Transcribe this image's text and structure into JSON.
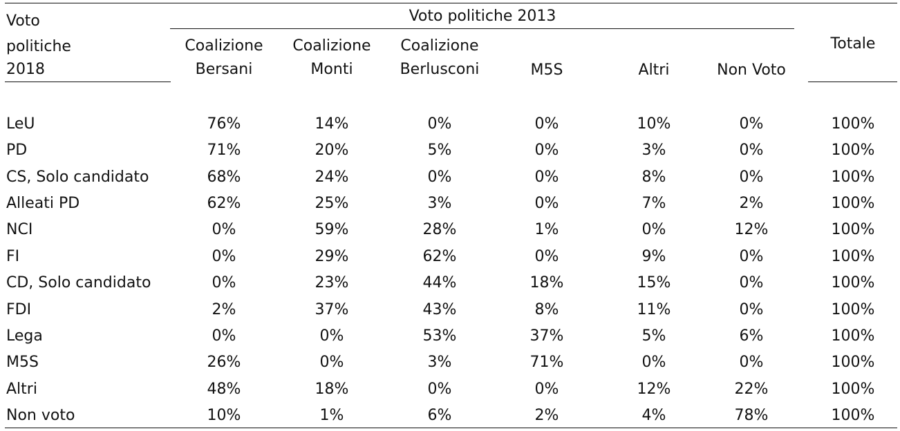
{
  "header": {
    "row_label": [
      "Voto",
      "politiche",
      "2018"
    ],
    "group_title": "Voto politiche 2013",
    "columns": [
      [
        "Coalizione",
        "Bersani"
      ],
      [
        "Coalizione",
        "Monti"
      ],
      [
        "Coalizione",
        "Berlusconi"
      ],
      [
        "",
        "M5S"
      ],
      [
        "",
        "Altri"
      ],
      [
        "",
        "Non Voto"
      ]
    ],
    "total": "Totale"
  },
  "rows": [
    {
      "label": "LeU",
      "values": [
        "76%",
        "14%",
        "0%",
        "0%",
        "10%",
        "0%"
      ],
      "total": "100%"
    },
    {
      "label": "PD",
      "values": [
        "71%",
        "20%",
        "5%",
        "0%",
        "3%",
        "0%"
      ],
      "total": "100%"
    },
    {
      "label": "CS, Solo candidato",
      "values": [
        "68%",
        "24%",
        "0%",
        "0%",
        "8%",
        "0%"
      ],
      "total": "100%"
    },
    {
      "label": "Alleati PD",
      "values": [
        "62%",
        "25%",
        "3%",
        "0%",
        "7%",
        "2%"
      ],
      "total": "100%"
    },
    {
      "label": "NCI",
      "values": [
        "0%",
        "59%",
        "28%",
        "1%",
        "0%",
        "12%"
      ],
      "total": "100%"
    },
    {
      "label": "FI",
      "values": [
        "0%",
        "29%",
        "62%",
        "0%",
        "9%",
        "0%"
      ],
      "total": "100%"
    },
    {
      "label": "CD, Solo candidato",
      "values": [
        "0%",
        "23%",
        "44%",
        "18%",
        "15%",
        "0%"
      ],
      "total": "100%"
    },
    {
      "label": "FDI",
      "values": [
        "2%",
        "37%",
        "43%",
        "8%",
        "11%",
        "0%"
      ],
      "total": "100%"
    },
    {
      "label": "Lega",
      "values": [
        "0%",
        "0%",
        "53%",
        "37%",
        "5%",
        "6%"
      ],
      "total": "100%"
    },
    {
      "label": "M5S",
      "values": [
        "26%",
        "0%",
        "3%",
        "71%",
        "0%",
        "0%"
      ],
      "total": "100%"
    },
    {
      "label": "Altri",
      "values": [
        "48%",
        "18%",
        "0%",
        "0%",
        "12%",
        "22%"
      ],
      "total": "100%"
    },
    {
      "label": "Non voto",
      "values": [
        "10%",
        "1%",
        "6%",
        "2%",
        "4%",
        "78%"
      ],
      "total": "100%"
    }
  ]
}
